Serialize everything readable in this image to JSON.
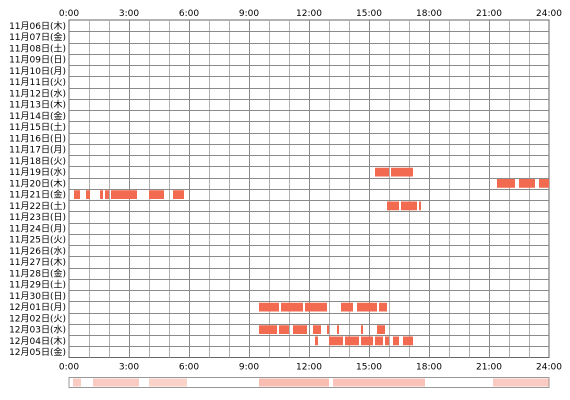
{
  "chart_data": {
    "type": "heatmap",
    "x_ticks": [
      "0:00",
      "3:00",
      "6:00",
      "9:00",
      "12:00",
      "15:00",
      "18:00",
      "21:00",
      "24:00"
    ],
    "xlim": [
      0,
      24
    ],
    "grid": true,
    "bar_color": "#f26a4f",
    "summary_color": "#f26a4f",
    "rows": [
      {
        "date": "11月06日(木)",
        "intervals": []
      },
      {
        "date": "11月07日(金)",
        "intervals": []
      },
      {
        "date": "11月08日(土)",
        "intervals": []
      },
      {
        "date": "11月09日(日)",
        "intervals": []
      },
      {
        "date": "11月10日(月)",
        "intervals": []
      },
      {
        "date": "11月11日(火)",
        "intervals": []
      },
      {
        "date": "11月12日(水)",
        "intervals": []
      },
      {
        "date": "11月13日(木)",
        "intervals": []
      },
      {
        "date": "11月14日(金)",
        "intervals": []
      },
      {
        "date": "11月15日(土)",
        "intervals": []
      },
      {
        "date": "11月16日(日)",
        "intervals": []
      },
      {
        "date": "11月17日(月)",
        "intervals": []
      },
      {
        "date": "11月18日(火)",
        "intervals": []
      },
      {
        "date": "11月19日(水)",
        "intervals": [
          [
            15.3,
            16.0
          ],
          [
            16.1,
            17.2
          ]
        ]
      },
      {
        "date": "11月20日(木)",
        "intervals": [
          [
            21.4,
            22.3
          ],
          [
            22.5,
            23.3
          ],
          [
            23.5,
            24.0
          ]
        ]
      },
      {
        "date": "11月21日(金)",
        "intervals": [
          [
            0.25,
            0.55
          ],
          [
            0.85,
            1.05
          ],
          [
            1.55,
            1.7
          ],
          [
            1.8,
            2.0
          ],
          [
            2.1,
            3.4
          ],
          [
            4.0,
            4.75
          ],
          [
            5.2,
            5.75
          ]
        ]
      },
      {
        "date": "11月22日(土)",
        "intervals": [
          [
            15.9,
            16.5
          ],
          [
            16.6,
            17.4
          ],
          [
            17.5,
            17.6
          ]
        ]
      },
      {
        "date": "11月23日(日)",
        "intervals": []
      },
      {
        "date": "11月24日(月)",
        "intervals": []
      },
      {
        "date": "11月25日(火)",
        "intervals": []
      },
      {
        "date": "11月26日(水)",
        "intervals": []
      },
      {
        "date": "11月27日(木)",
        "intervals": []
      },
      {
        "date": "11月28日(金)",
        "intervals": []
      },
      {
        "date": "11月29日(土)",
        "intervals": []
      },
      {
        "date": "11月30日(日)",
        "intervals": []
      },
      {
        "date": "12月01日(月)",
        "intervals": [
          [
            9.5,
            10.5
          ],
          [
            10.6,
            11.7
          ],
          [
            11.8,
            12.9
          ],
          [
            13.6,
            14.2
          ],
          [
            14.4,
            15.4
          ],
          [
            15.5,
            15.9
          ]
        ]
      },
      {
        "date": "12月02日(火)",
        "intervals": []
      },
      {
        "date": "12月03日(水)",
        "intervals": [
          [
            9.5,
            10.4
          ],
          [
            10.5,
            11.0
          ],
          [
            11.2,
            11.9
          ],
          [
            12.2,
            12.6
          ],
          [
            12.9,
            13.0
          ],
          [
            13.4,
            13.5
          ],
          [
            14.6,
            14.7
          ],
          [
            15.4,
            15.8
          ]
        ]
      },
      {
        "date": "12月04日(木)",
        "intervals": [
          [
            12.3,
            12.45
          ],
          [
            13.0,
            13.7
          ],
          [
            13.8,
            14.5
          ],
          [
            14.6,
            15.2
          ],
          [
            15.3,
            15.7
          ],
          [
            15.8,
            16.0
          ],
          [
            16.2,
            16.5
          ],
          [
            16.7,
            17.2
          ]
        ]
      },
      {
        "date": "12月05日(金)",
        "intervals": []
      }
    ],
    "summary": [
      [
        0.2,
        0.6,
        0.35
      ],
      [
        1.2,
        3.5,
        0.35
      ],
      [
        4.0,
        5.9,
        0.3
      ],
      [
        9.5,
        13.0,
        0.45
      ],
      [
        13.2,
        17.8,
        0.4
      ],
      [
        21.2,
        24.0,
        0.35
      ]
    ]
  }
}
